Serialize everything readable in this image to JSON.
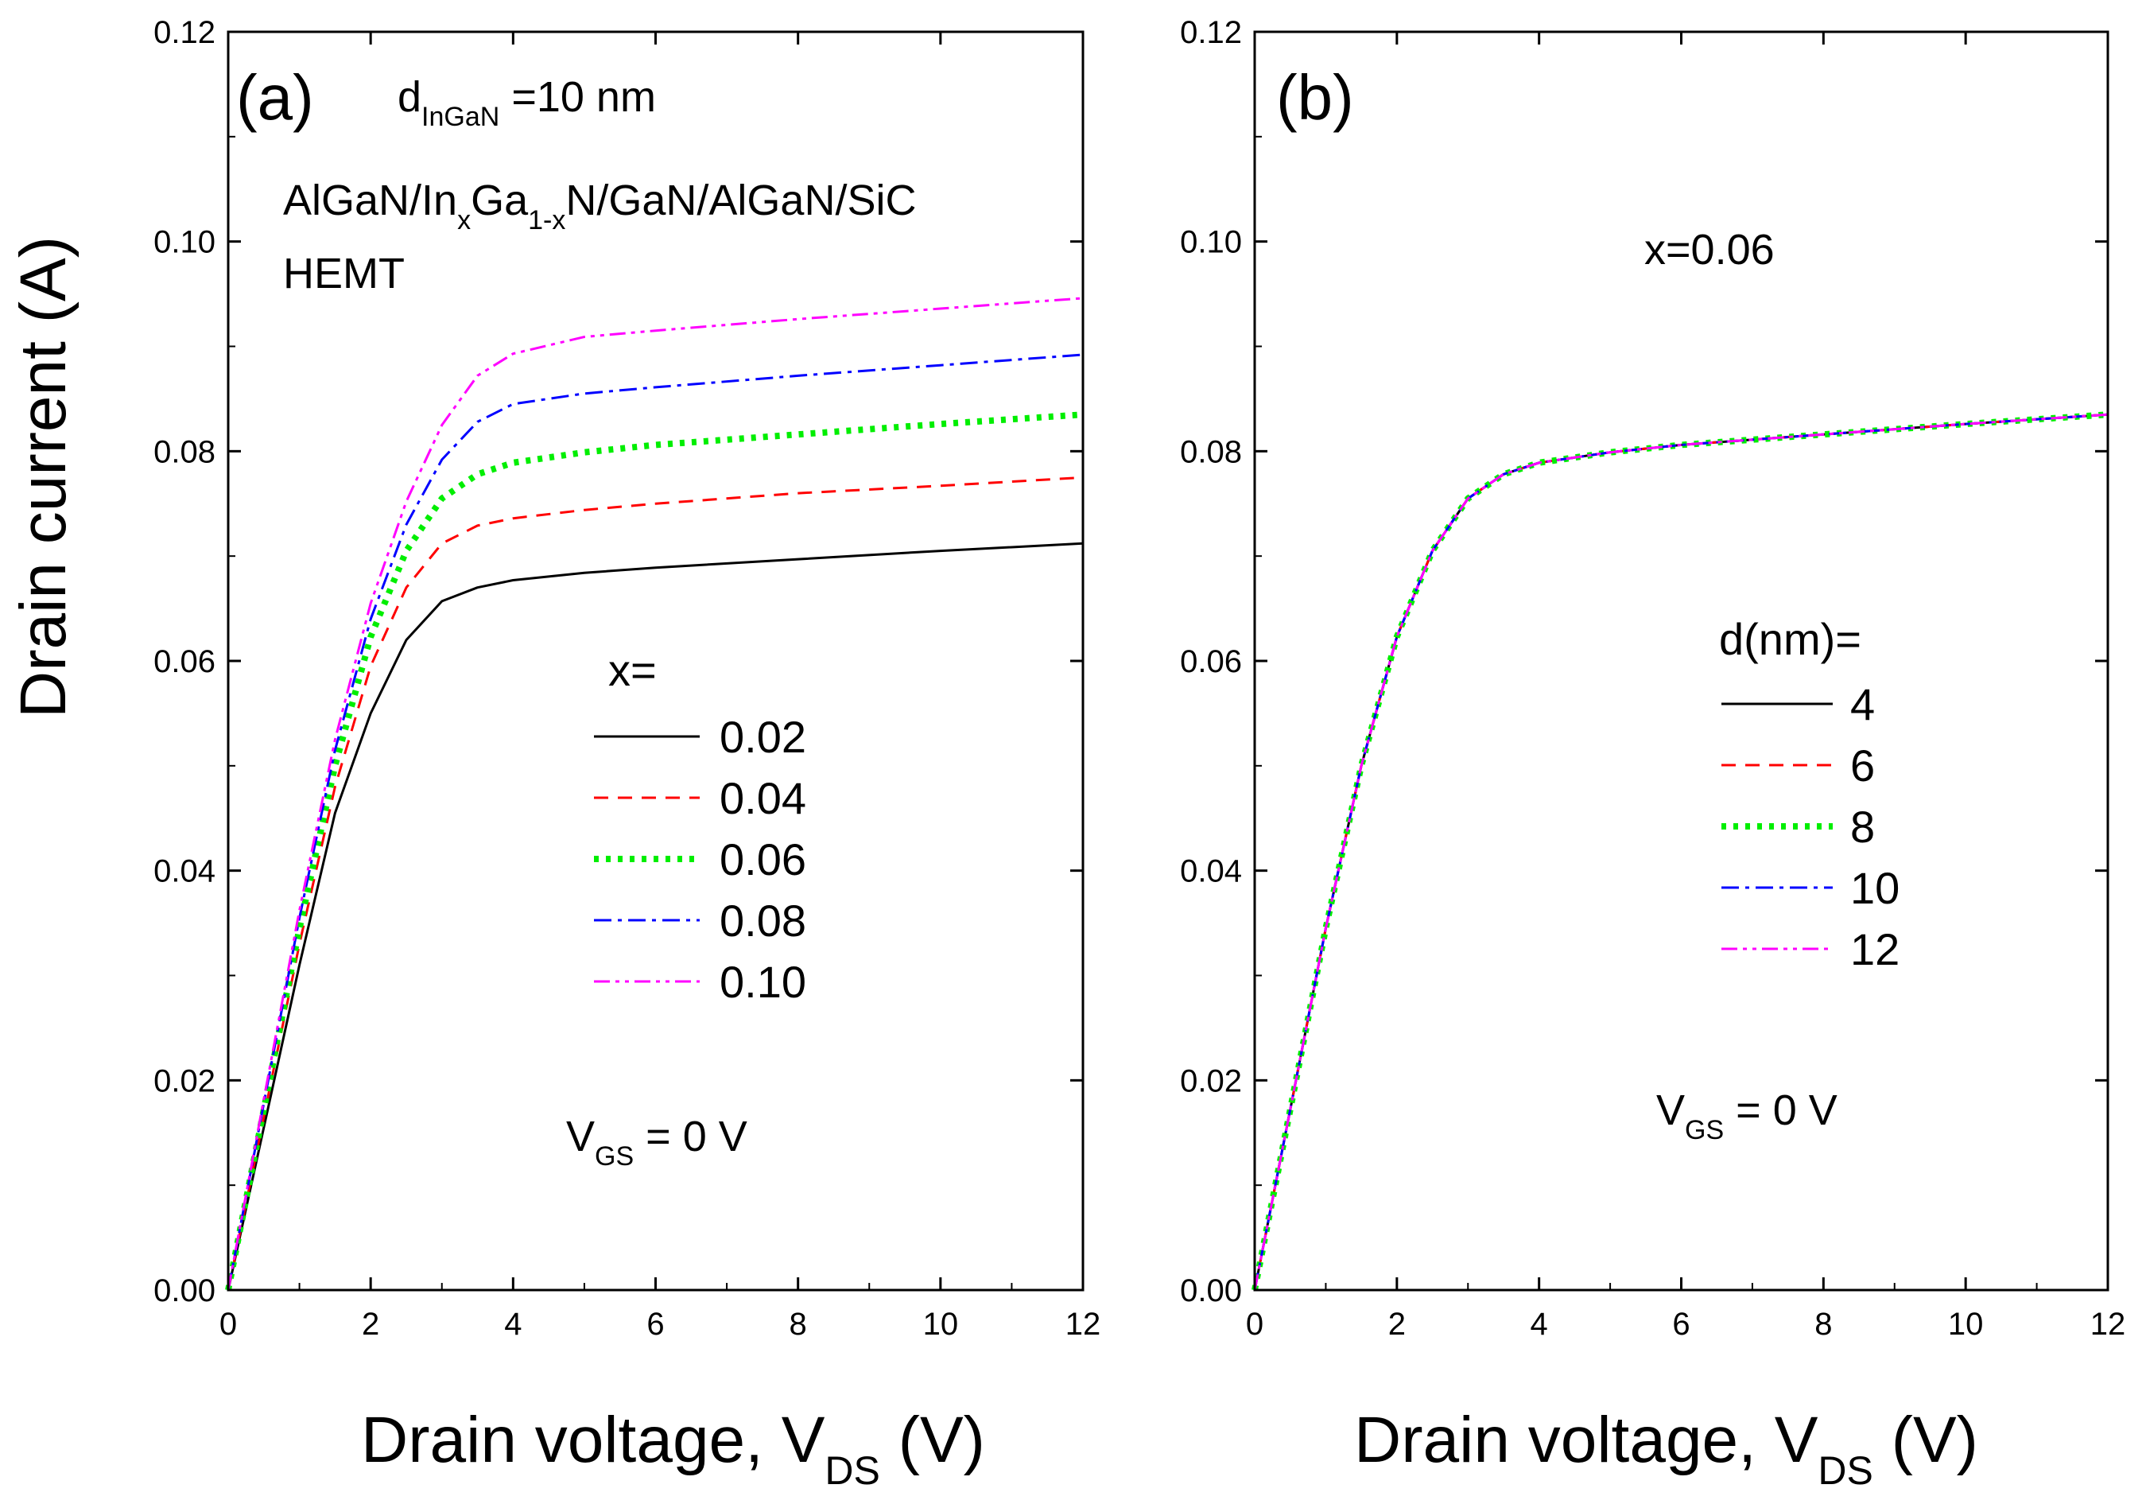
{
  "ylabel": "Drain current (A)",
  "panels": [
    {
      "label": "(a)",
      "thickness": {
        "main": "d",
        "sub": "InGaN",
        "rest": " =10 nm"
      },
      "structure": {
        "p1": "AlGaN/In",
        "s1": "x",
        "p2": "Ga",
        "s2": "1-x",
        "p3": "N/GaN/AlGaN/SiC"
      },
      "device": "HEMT",
      "bias": {
        "main": "V",
        "sub": "GS",
        "rest": " = 0 V"
      },
      "legend_title": "x=",
      "xlabel": {
        "main": "Drain voltage, V",
        "sub": "DS",
        "rest": " (V)"
      }
    },
    {
      "label": "(b)",
      "composition": "x=0.06",
      "bias": {
        "main": "V",
        "sub": "GS",
        "rest": " = 0 V"
      },
      "legend_title": "d(nm)=",
      "xlabel": {
        "main": "Drain voltage, V",
        "sub": "DS",
        "rest": " (V)"
      }
    }
  ],
  "chart_data": [
    {
      "type": "line",
      "panel": "(a)",
      "xlabel": "Drain voltage, VDS (V)",
      "ylabel": "Drain current (A)",
      "xlim": [
        0,
        12
      ],
      "ylim": [
        0,
        0.12
      ],
      "xticks": [
        "0",
        "2",
        "4",
        "6",
        "8",
        "10",
        "12"
      ],
      "yticks": [
        "0.00",
        "0.02",
        "0.04",
        "0.06",
        "0.08",
        "0.10",
        "0.12"
      ],
      "legend_title": "x=",
      "legend_position": "center-right",
      "x": [
        0,
        0.5,
        1,
        1.5,
        2,
        2.5,
        3,
        3.5,
        4,
        5,
        6,
        8,
        10,
        12
      ],
      "series": [
        {
          "name": "0.02",
          "color": "#000000",
          "dash": "solid",
          "values": [
            0,
            0.0155,
            0.031,
            0.0455,
            0.055,
            0.062,
            0.0657,
            0.067,
            0.0677,
            0.0684,
            0.0689,
            0.0697,
            0.0705,
            0.0712
          ]
        },
        {
          "name": "0.04",
          "color": "#ff0000",
          "dash": "dash",
          "values": [
            0,
            0.0165,
            0.033,
            0.048,
            0.0595,
            0.067,
            0.0712,
            0.0729,
            0.0736,
            0.0744,
            0.075,
            0.076,
            0.0767,
            0.0775
          ]
        },
        {
          "name": "0.06",
          "color": "#00ee00",
          "dash": "dot",
          "values": [
            0,
            0.0172,
            0.0345,
            0.05,
            0.0623,
            0.0705,
            0.0755,
            0.0778,
            0.0789,
            0.0799,
            0.0806,
            0.0816,
            0.0826,
            0.0835
          ]
        },
        {
          "name": "0.08",
          "color": "#0000ff",
          "dash": "dashdot",
          "values": [
            0,
            0.0178,
            0.0355,
            0.0515,
            0.064,
            0.073,
            0.0792,
            0.0828,
            0.0845,
            0.0855,
            0.0861,
            0.0872,
            0.0882,
            0.0892
          ]
        },
        {
          "name": "0.10",
          "color": "#ff00ff",
          "dash": "dashdotdot",
          "values": [
            0,
            0.0182,
            0.0362,
            0.0525,
            0.0655,
            0.0752,
            0.0825,
            0.0872,
            0.0893,
            0.0909,
            0.0915,
            0.0926,
            0.0936,
            0.0946
          ]
        }
      ]
    },
    {
      "type": "line",
      "panel": "(b)",
      "xlabel": "Drain voltage, VDS (V)",
      "ylabel": "",
      "xlim": [
        0,
        12
      ],
      "ylim": [
        0,
        0.12
      ],
      "xticks": [
        "0",
        "2",
        "4",
        "6",
        "8",
        "10",
        "12"
      ],
      "yticks": [
        "0.00",
        "0.02",
        "0.04",
        "0.06",
        "0.08",
        "0.10",
        "0.12"
      ],
      "legend_title": "d(nm)=",
      "legend_position": "center-right",
      "x": [
        0,
        0.5,
        1,
        1.5,
        2,
        2.5,
        3,
        3.5,
        4,
        5,
        6,
        8,
        10,
        12
      ],
      "series": [
        {
          "name": "4",
          "color": "#000000",
          "dash": "solid",
          "values": [
            0,
            0.0172,
            0.0345,
            0.05,
            0.0623,
            0.0705,
            0.0755,
            0.0778,
            0.0789,
            0.0799,
            0.0806,
            0.0816,
            0.0826,
            0.0835
          ]
        },
        {
          "name": "6",
          "color": "#ff0000",
          "dash": "dash",
          "values": [
            0,
            0.0172,
            0.0345,
            0.05,
            0.0623,
            0.0705,
            0.0755,
            0.0778,
            0.0789,
            0.0799,
            0.0806,
            0.0816,
            0.0826,
            0.0835
          ]
        },
        {
          "name": "8",
          "color": "#00ee00",
          "dash": "dot",
          "values": [
            0,
            0.0172,
            0.0345,
            0.05,
            0.0623,
            0.0705,
            0.0755,
            0.0778,
            0.0789,
            0.0799,
            0.0806,
            0.0816,
            0.0826,
            0.0835
          ]
        },
        {
          "name": "10",
          "color": "#0000ff",
          "dash": "dashdot",
          "values": [
            0,
            0.0172,
            0.0345,
            0.05,
            0.0623,
            0.0705,
            0.0755,
            0.0778,
            0.0789,
            0.0799,
            0.0806,
            0.0816,
            0.0826,
            0.0835
          ]
        },
        {
          "name": "12",
          "color": "#ff00ff",
          "dash": "dashdotdot",
          "values": [
            0,
            0.0172,
            0.0345,
            0.05,
            0.0623,
            0.0705,
            0.0755,
            0.0778,
            0.0789,
            0.0799,
            0.0806,
            0.0816,
            0.0826,
            0.0835
          ]
        }
      ]
    }
  ]
}
